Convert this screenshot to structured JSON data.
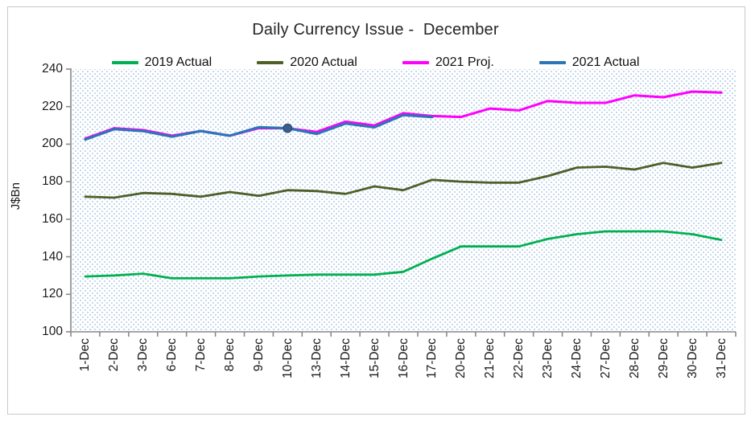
{
  "title": "Daily Currency Issue -  December",
  "colors": {
    "axis": "#898989",
    "plot_dot_pattern": "#b6cfe9",
    "frame_border": "#c9c9c9",
    "text": "#262626"
  },
  "chart_data": {
    "type": "line",
    "title": "Daily Currency Issue -  December",
    "xlabel": "",
    "ylabel": "J$Bn",
    "ylim": [
      100,
      240
    ],
    "y_ticks": [
      100,
      120,
      140,
      160,
      180,
      200,
      220,
      240
    ],
    "grid": false,
    "legend_position": "top",
    "plot_background": "light-blue dotted pattern on white",
    "categories": [
      "1-Dec",
      "2-Dec",
      "3-Dec",
      "6-Dec",
      "7-Dec",
      "8-Dec",
      "9-Dec",
      "10-Dec",
      "13-Dec",
      "14-Dec",
      "15-Dec",
      "16-Dec",
      "17-Dec",
      "20-Dec",
      "21-Dec",
      "22-Dec",
      "23-Dec",
      "24-Dec",
      "27-Dec",
      "28-Dec",
      "29-Dec",
      "30-Dec",
      "31-Dec"
    ],
    "series": [
      {
        "id": "2019-actual",
        "name": "2019 Actual",
        "color": "#00B050",
        "width": 2.8,
        "values": [
          129.5,
          130,
          131,
          128.5,
          128.5,
          128.5,
          129.5,
          130,
          130.5,
          130.5,
          130.5,
          132,
          139,
          145.5,
          145.5,
          145.5,
          149.5,
          152,
          153.5,
          153.5,
          153.5,
          152,
          149
        ]
      },
      {
        "id": "2020-actual",
        "name": "2020 Actual",
        "color": "#4E5F28",
        "width": 2.8,
        "values": [
          172,
          171.5,
          174,
          173.5,
          172,
          174.5,
          172.5,
          175.5,
          175,
          173.5,
          177.5,
          175.5,
          181,
          180,
          179.5,
          179.5,
          183,
          187.5,
          188,
          186.5,
          190,
          187.5,
          190
        ]
      },
      {
        "id": "2021-proj",
        "name": "2021 Proj.",
        "color": "#FF00FF",
        "width": 3.0,
        "values": [
          203,
          208.5,
          207.5,
          204.5,
          207,
          204.5,
          208.5,
          208.5,
          206.5,
          212,
          210,
          216.5,
          215,
          214.5,
          219,
          218,
          223,
          222,
          222,
          226,
          225,
          228,
          227.5
        ]
      },
      {
        "id": "2021-actual",
        "name": "2021 Actual",
        "color": "#2E75B6",
        "width": 3.2,
        "marker_index": 7,
        "marker_fill": "#3A5F8C",
        "marker_stroke": "#2B4A70",
        "values": [
          202.5,
          208,
          207,
          204,
          207,
          204.5,
          209,
          208.5,
          205.5,
          211,
          209,
          215.5,
          214.5,
          null,
          null,
          null,
          null,
          null,
          null,
          null,
          null,
          null,
          null
        ]
      }
    ]
  }
}
